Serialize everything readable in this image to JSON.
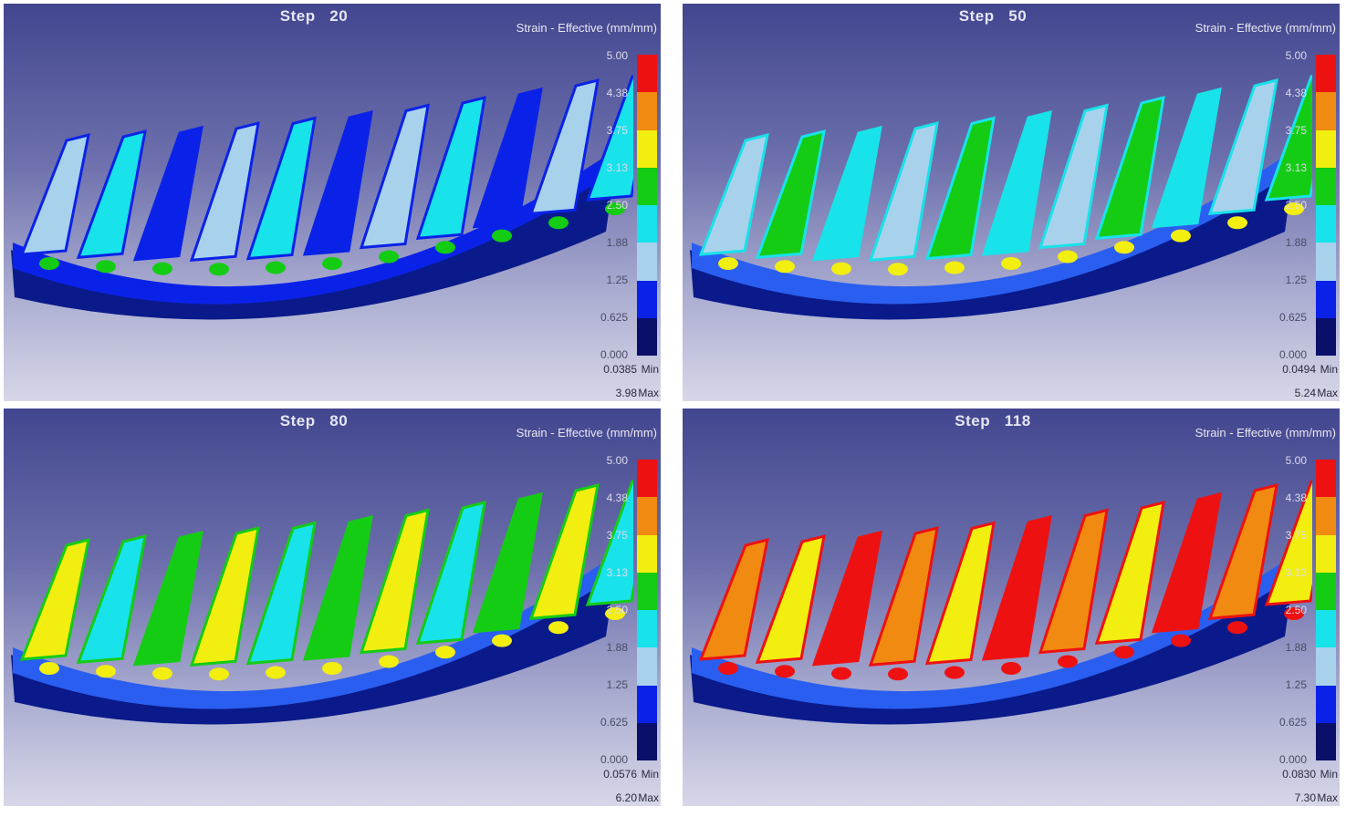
{
  "panels": [
    {
      "step_label": "Step",
      "step_number": "20",
      "legend_title": "Strain - Effective (mm/mm)",
      "ticks": [
        "5.00",
        "4.38",
        "3.75",
        "3.13",
        "2.50",
        "1.88",
        "1.25",
        "0.625",
        "0.000"
      ],
      "min_value": "0.0385",
      "min_label": "Min",
      "max_value": "3.98",
      "max_label": "Max",
      "strain_level": 0
    },
    {
      "step_label": "Step",
      "step_number": "50",
      "legend_title": "Strain - Effective (mm/mm)",
      "ticks": [
        "5.00",
        "4.38",
        "3.75",
        "3.13",
        "2.50",
        "1.88",
        "1.25",
        "0.625",
        "0.000"
      ],
      "min_value": "0.0494",
      "min_label": "Min",
      "max_value": "5.24",
      "max_label": "Max",
      "strain_level": 1
    },
    {
      "step_label": "Step",
      "step_number": "80",
      "legend_title": "Strain - Effective (mm/mm)",
      "ticks": [
        "5.00",
        "4.38",
        "3.75",
        "3.13",
        "2.50",
        "1.88",
        "1.25",
        "0.625",
        "0.000"
      ],
      "min_value": "0.0576",
      "min_label": "Min",
      "max_value": "6.20",
      "max_label": "Max",
      "strain_level": 2
    },
    {
      "step_label": "Step",
      "step_number": "118",
      "legend_title": "Strain - Effective (mm/mm)",
      "ticks": [
        "5.00",
        "4.38",
        "3.75",
        "3.13",
        "2.50",
        "1.88",
        "1.25",
        "0.625",
        "0.000"
      ],
      "min_value": "0.0830",
      "min_label": "Min",
      "max_value": "7.30",
      "max_label": "Max",
      "strain_level": 3
    }
  ],
  "color_scale": [
    "#ee1111",
    "#f08a10",
    "#f2ee10",
    "#14cc14",
    "#18e2ea",
    "#a8d2ec",
    "#0a22e8",
    "#0a0f6a"
  ]
}
